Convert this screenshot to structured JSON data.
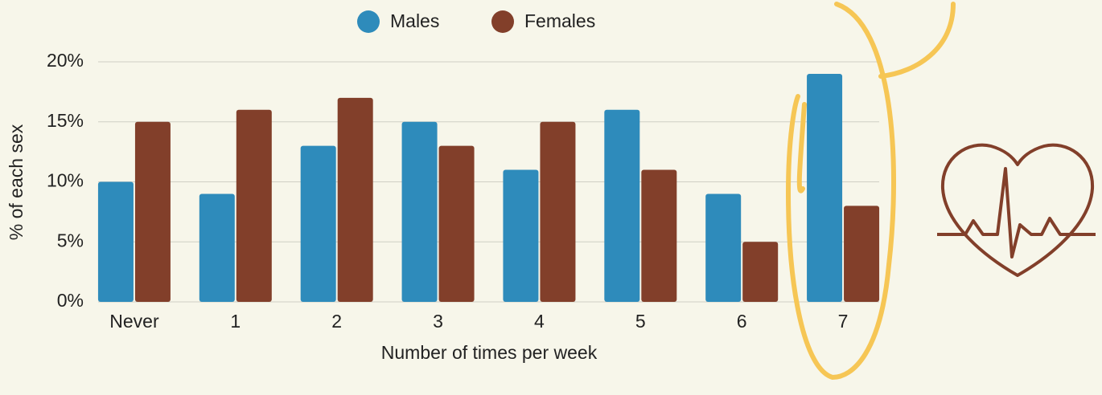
{
  "chart_data": {
    "type": "bar",
    "categories": [
      "Never",
      "1",
      "2",
      "3",
      "4",
      "5",
      "6",
      "7"
    ],
    "series": [
      {
        "name": "Males",
        "color": "#2e8bbb",
        "values": [
          10,
          9,
          13,
          15,
          11,
          16,
          9,
          19
        ]
      },
      {
        "name": "Females",
        "color": "#823f2a",
        "values": [
          15,
          16,
          17,
          13,
          15,
          11,
          5,
          8
        ]
      }
    ],
    "x_label": "Number of times per week",
    "y_label": "% of each sex",
    "ylim": [
      0,
      20
    ],
    "yticks": [
      {
        "value": 0,
        "label": "0%"
      },
      {
        "value": 5,
        "label": "5%"
      },
      {
        "value": 10,
        "label": "10%"
      },
      {
        "value": 15,
        "label": "15%"
      },
      {
        "value": 20,
        "label": "20%"
      }
    ],
    "grid": true
  }
}
